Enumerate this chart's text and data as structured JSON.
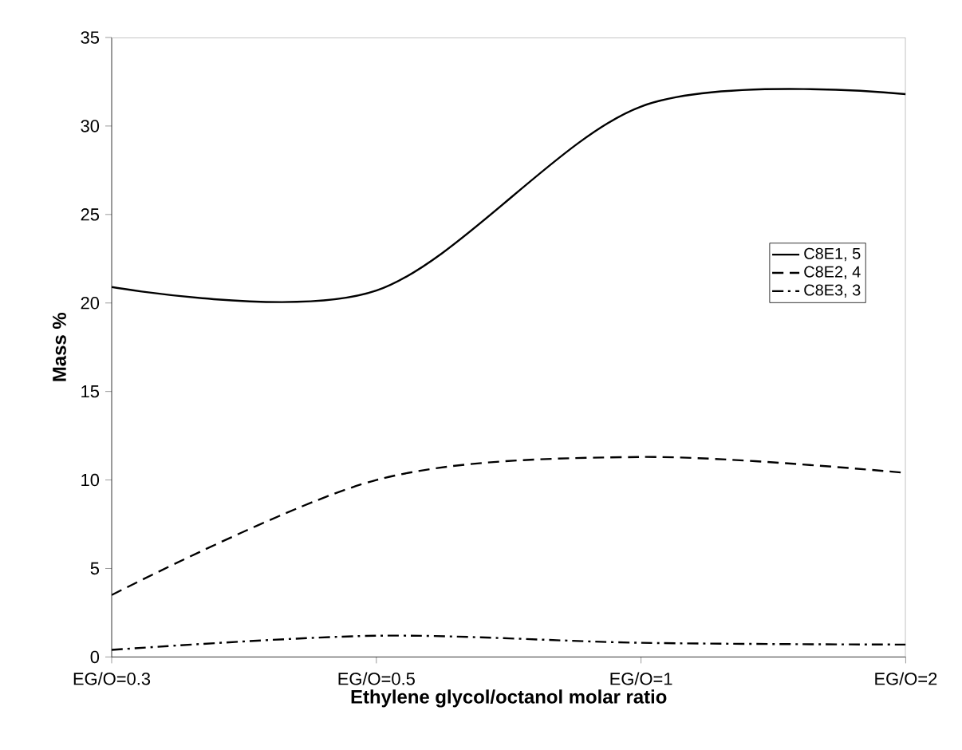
{
  "chart_data": {
    "type": "line",
    "xlabel": "Ethylene glycol/octanol molar ratio",
    "ylabel": "Mass %",
    "categories": [
      "EG/O=0.3",
      "EG/O=0.5",
      "EG/O=1",
      "EG/O=2"
    ],
    "ylim": [
      0,
      35
    ],
    "yticks": [
      0,
      5,
      10,
      15,
      20,
      25,
      30,
      35
    ],
    "grid": false,
    "legend": "right",
    "marker": "none",
    "series": [
      {
        "name": "C8E1, 5",
        "color": "#000000",
        "line_style": "solid",
        "values": [
          20.9,
          20.7,
          31.1,
          31.8
        ]
      },
      {
        "name": "C8E2, 4",
        "color": "#000000",
        "line_style": "dashed",
        "values": [
          3.5,
          10,
          11.3,
          10.4
        ]
      },
      {
        "name": "C8E3, 3",
        "color": "#000000",
        "line_style": "dashdot",
        "values": [
          0.4,
          1.2,
          0.8,
          0.7
        ]
      }
    ]
  }
}
